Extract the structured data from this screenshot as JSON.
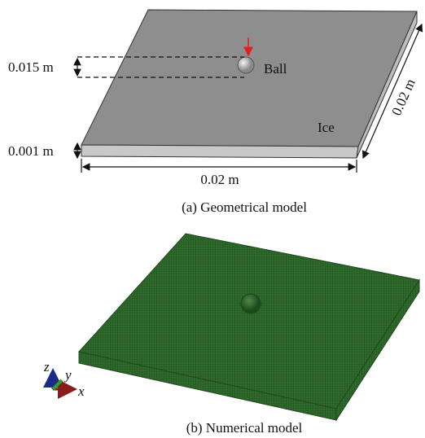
{
  "panel_a": {
    "labels": {
      "ball_height": "0.015 m",
      "ball": "Ball",
      "side_length": "0.02 m",
      "ice": "Ice",
      "thickness": "0.001 m",
      "width": "0.02 m"
    },
    "caption": "(a) Geometrical model"
  },
  "panel_b": {
    "axes": {
      "z": "z",
      "y": "y",
      "x": "x"
    },
    "caption": "(b) Numerical model"
  }
}
